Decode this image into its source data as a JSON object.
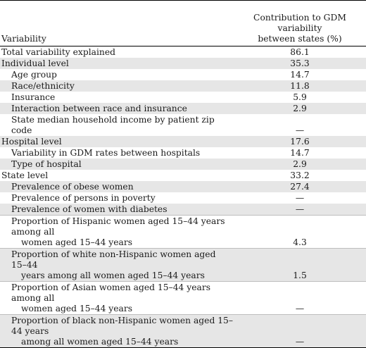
{
  "table": {
    "header": {
      "col1": "Variability",
      "col2_line1": "Contribution to GDM variability",
      "col2_line2": "between states (%)"
    },
    "rows": [
      {
        "label": "Total variability explained",
        "value": "86.1",
        "indent": false,
        "shade": false
      },
      {
        "label": "Individual level",
        "value": "35.3",
        "indent": false,
        "shade": true
      },
      {
        "label": "Age group",
        "value": "14.7",
        "indent": true,
        "shade": false
      },
      {
        "label": "Race/ethnicity",
        "value": "11.8",
        "indent": true,
        "shade": true
      },
      {
        "label": "Insurance",
        "value": "5.9",
        "indent": true,
        "shade": false
      },
      {
        "label": "Interaction between race and insurance",
        "value": "2.9",
        "indent": true,
        "shade": true
      },
      {
        "label": "State median household income by patient zip code",
        "value": "—",
        "indent": true,
        "shade": false
      },
      {
        "label": "Hospital level",
        "value": "17.6",
        "indent": false,
        "shade": true
      },
      {
        "label": "Variability in GDM rates between hospitals",
        "value": "14.7",
        "indent": true,
        "shade": false
      },
      {
        "label": "Type of hospital",
        "value": "2.9",
        "indent": true,
        "shade": true
      },
      {
        "label": "State level",
        "value": "33.2",
        "indent": false,
        "shade": false
      },
      {
        "label": "Prevalence of obese women",
        "value": "27.4",
        "indent": true,
        "shade": true
      },
      {
        "label": "Prevalence of persons in poverty",
        "value": "—",
        "indent": true,
        "shade": false
      },
      {
        "label": "Prevalence of women with diabetes",
        "value": "—",
        "indent": true,
        "shade": true
      },
      {
        "label_line1": "Proportion of Hispanic women aged 15–44 years among all",
        "label_line2": "women aged 15–44 years",
        "value": "4.3",
        "indent": true,
        "shade": false
      },
      {
        "label_line1": "Proportion of white non-Hispanic women aged 15–44",
        "label_line2": "years among all women aged 15–44 years",
        "value": "1.5",
        "indent": true,
        "shade": true
      },
      {
        "label_line1": "Proportion of Asian women aged 15–44 years among all",
        "label_line2": "women aged 15–44 years",
        "value": "—",
        "indent": true,
        "shade": false
      },
      {
        "label_line1": "Proportion of black non-Hispanic women aged 15–44 years",
        "label_line2": "among all women aged 15–44 years",
        "value": "—",
        "indent": true,
        "shade": true
      }
    ]
  }
}
